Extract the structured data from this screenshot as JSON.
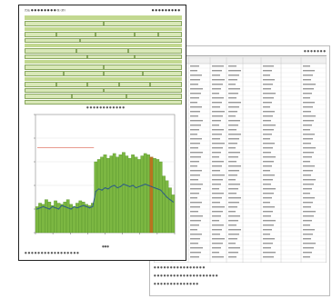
{
  "front_page": {
    "header_left": "氏名 ● ● ● ● ● ● ● ● 様 (男)",
    "header_right": "● ● ● ● ● ● ● ● ●",
    "chart_caption": "● ● ● ● ● ● ● ● ● ● ● ●",
    "x_axis_label": "●●●",
    "footer_note": "● ● ● ● ● ● ● ● ● ● ● ● ● ● ● ● ●"
  },
  "back_page": {
    "header_left": "● ● ● ● ●",
    "header_right": "● ● ● ● ● ● ●",
    "footer_line1": "● ● ● ● ● ● ● ● ● ● ● ● ● ● ● ●",
    "footer_line2": "● ● ● ● ● ● ● ● ● ● ● ● ● ● ● ● ● ● ● ●",
    "footer_line3": "● ● ● ● ● ● ● ● ● ● ● ● ● ●"
  },
  "chart_data": {
    "type": "bar",
    "title": "",
    "xlabel": "",
    "ylabel": "",
    "grid": true,
    "bars": [
      22,
      25,
      24,
      28,
      26,
      23,
      27,
      25,
      24,
      26,
      28,
      24,
      22,
      25,
      27,
      26,
      24,
      23,
      25,
      60,
      62,
      64,
      66,
      63,
      65,
      67,
      64,
      66,
      68,
      65,
      63,
      66,
      64,
      62,
      65,
      67,
      66,
      64,
      63,
      62,
      60,
      48,
      44,
      38,
      32
    ],
    "line": [
      20,
      21,
      22,
      21,
      20,
      22,
      21,
      20,
      23,
      22,
      21,
      20,
      22,
      21,
      22,
      23,
      22,
      21,
      22,
      35,
      37,
      36,
      38,
      37,
      39,
      40,
      38,
      39,
      41,
      40,
      39,
      40,
      38,
      39,
      40,
      41,
      40,
      39,
      38,
      37,
      36,
      33,
      30,
      28,
      26
    ],
    "reference_level": 72,
    "highlight_index": 37,
    "ymax": 100,
    "colors": {
      "bar": "#7cb742",
      "bar_edge": "#4d8a22",
      "line": "#2f5d86",
      "reference": "#e07a6a",
      "highlight": "#b8741f"
    }
  }
}
